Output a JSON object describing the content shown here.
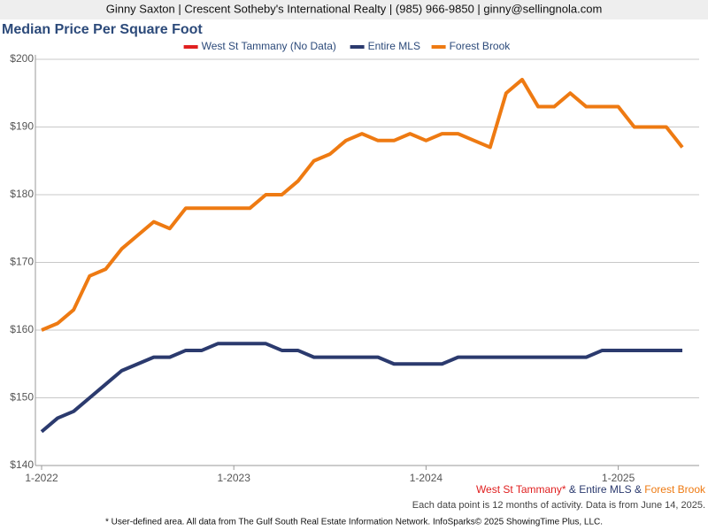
{
  "chart_data": {
    "type": "line",
    "header": "Ginny Saxton | Crescent Sotheby's International Realty | (985) 966-9850 | ginny@sellingnola.com",
    "title": "Median Price Per Square Foot",
    "categories": [
      "1-2022",
      null,
      null,
      null,
      null,
      null,
      null,
      null,
      null,
      null,
      null,
      null,
      "1-2023",
      null,
      null,
      null,
      null,
      null,
      null,
      null,
      null,
      null,
      null,
      null,
      "1-2024",
      null,
      null,
      null,
      null,
      null,
      null,
      null,
      null,
      null,
      null,
      null,
      "1-2025",
      null,
      null,
      null,
      null
    ],
    "series": [
      {
        "name": "West St Tammany (No Data)",
        "short_name": "West St Tammany",
        "color": "#e02020",
        "values": [
          null,
          null,
          null,
          null,
          null,
          null,
          null,
          null,
          null,
          null,
          null,
          null,
          null,
          null,
          null,
          null,
          null,
          null,
          null,
          null,
          null,
          null,
          null,
          null,
          null,
          null,
          null,
          null,
          null,
          null,
          null,
          null,
          null,
          null,
          null,
          null,
          null,
          null,
          null,
          null,
          null
        ]
      },
      {
        "name": "Entire MLS",
        "color": "#2b3a6e",
        "values": [
          145,
          147,
          148,
          150,
          152,
          154,
          155,
          156,
          156,
          157,
          157,
          158,
          158,
          158,
          158,
          157,
          157,
          156,
          156,
          156,
          156,
          156,
          155,
          155,
          155,
          155,
          156,
          156,
          156,
          156,
          156,
          156,
          156,
          156,
          156,
          157,
          157,
          157,
          157,
          157,
          157
        ]
      },
      {
        "name": "Forest Brook",
        "color": "#ee7a12",
        "values": [
          160,
          161,
          163,
          168,
          169,
          172,
          174,
          176,
          175,
          178,
          178,
          178,
          178,
          178,
          180,
          180,
          182,
          185,
          186,
          188,
          189,
          188,
          188,
          189,
          188,
          189,
          189,
          188,
          187,
          195,
          197,
          193,
          193,
          195,
          193,
          193,
          193,
          190,
          190,
          190,
          187
        ]
      }
    ],
    "ylim": [
      140,
      200
    ],
    "yticks": [
      {
        "value": 140,
        "label": "$140"
      },
      {
        "value": 150,
        "label": "$150"
      },
      {
        "value": 160,
        "label": "$160"
      },
      {
        "value": 170,
        "label": "$170"
      },
      {
        "value": 180,
        "label": "$180"
      },
      {
        "value": 190,
        "label": "$190"
      },
      {
        "value": 200,
        "label": "$200"
      }
    ],
    "grid": true,
    "footnote_marker": "*",
    "joiner": "&",
    "note": "Each data point is 12 months of activity. Data is from June 14, 2025.",
    "footnote": "* User-defined area. All data from The Gulf South Real Estate Information Network. InfoSparks© 2025 ShowingTime Plus, LLC."
  }
}
